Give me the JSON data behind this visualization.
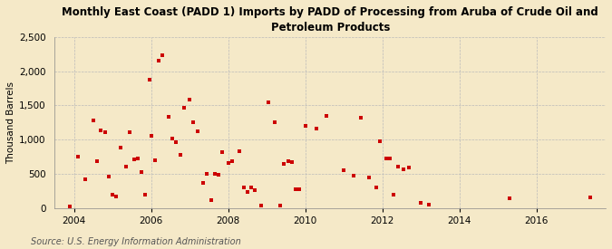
{
  "title": "Monthly East Coast (PADD 1) Imports by PADD of Processing from Aruba of Crude Oil and\nPetroleum Products",
  "ylabel": "Thousand Barrels",
  "source": "Source: U.S. Energy Information Administration",
  "background_color": "#f5e9c8",
  "plot_bg_color": "#f5e9c8",
  "marker_color": "#cc0000",
  "grid_color": "#bbbbbb",
  "xlim": [
    2003.5,
    2017.8
  ],
  "ylim": [
    0,
    2500
  ],
  "yticks": [
    0,
    500,
    1000,
    1500,
    2000,
    2500
  ],
  "ytick_labels": [
    "0",
    "500",
    "1,000",
    "1,500",
    "2,000",
    "2,500"
  ],
  "xticks": [
    2004,
    2006,
    2008,
    2010,
    2012,
    2014,
    2016
  ],
  "data_x": [
    2003.9,
    2004.1,
    2004.3,
    2004.5,
    2004.6,
    2004.7,
    2004.8,
    2004.9,
    2005.0,
    2005.1,
    2005.2,
    2005.35,
    2005.45,
    2005.55,
    2005.65,
    2005.75,
    2005.85,
    2005.95,
    2006.0,
    2006.1,
    2006.2,
    2006.3,
    2006.45,
    2006.55,
    2006.65,
    2006.75,
    2006.85,
    2007.0,
    2007.1,
    2007.2,
    2007.35,
    2007.45,
    2007.55,
    2007.65,
    2007.75,
    2007.85,
    2008.0,
    2008.1,
    2008.3,
    2008.4,
    2008.5,
    2008.6,
    2008.7,
    2008.85,
    2009.05,
    2009.2,
    2009.35,
    2009.45,
    2009.55,
    2009.65,
    2009.75,
    2009.85,
    2010.0,
    2010.3,
    2010.55,
    2011.0,
    2011.25,
    2011.45,
    2011.65,
    2011.85,
    2011.95,
    2012.1,
    2012.2,
    2012.3,
    2012.4,
    2012.55,
    2012.7,
    2013.0,
    2013.2,
    2015.3,
    2017.4
  ],
  "data_y": [
    30,
    750,
    420,
    1280,
    680,
    1130,
    1110,
    460,
    195,
    165,
    880,
    600,
    1110,
    710,
    720,
    530,
    200,
    1880,
    1050,
    700,
    2150,
    2230,
    1340,
    1010,
    960,
    780,
    1460,
    1580,
    1250,
    1120,
    370,
    500,
    110,
    500,
    490,
    820,
    660,
    680,
    830,
    300,
    230,
    300,
    260,
    40,
    1540,
    1250,
    40,
    650,
    680,
    670,
    270,
    280,
    1200,
    1160,
    1350,
    550,
    480,
    1320,
    450,
    300,
    980,
    730,
    720,
    195,
    600,
    570,
    590,
    70,
    55,
    145,
    155
  ]
}
